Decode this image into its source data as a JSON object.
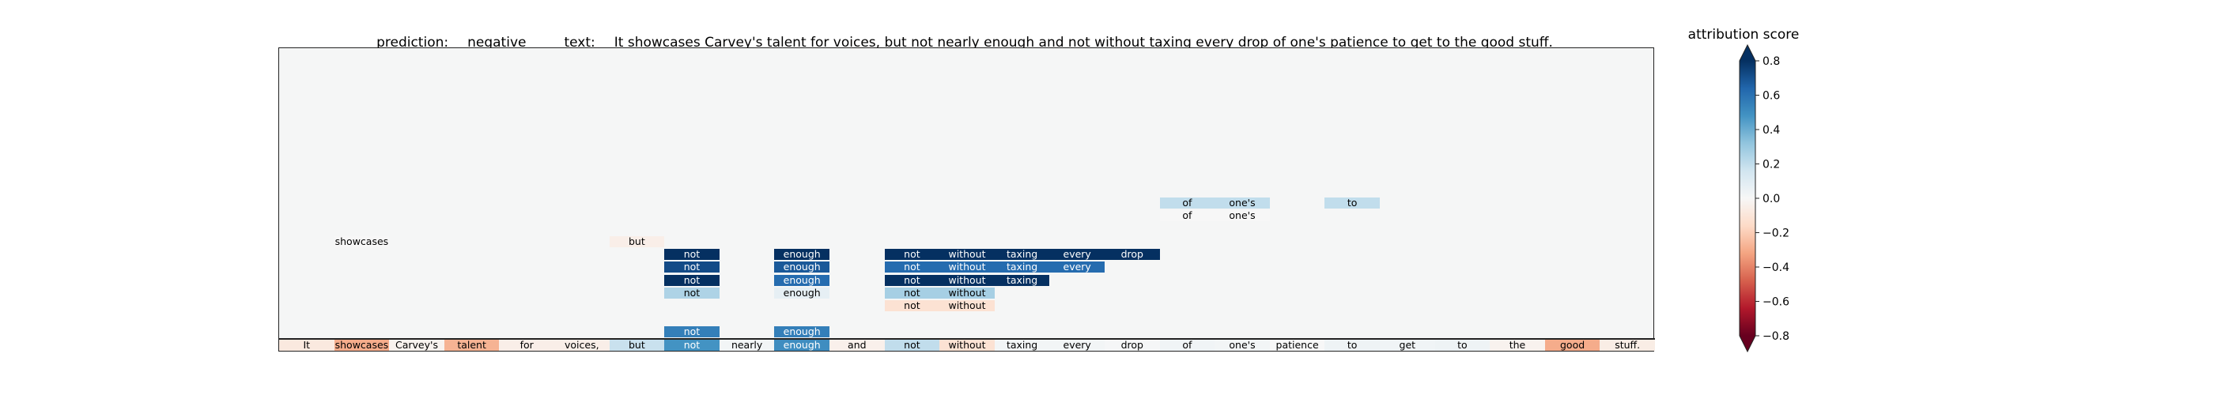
{
  "header": {
    "prediction_label": "prediction:",
    "prediction_value": "negative",
    "text_label": "text:",
    "text_value": "It showcases Carvey's talent for voices, but not nearly enough and not without taxing every drop of one's patience to get to the good stuff."
  },
  "chart_data": {
    "type": "heatmap",
    "colormap": "RdBu",
    "vmin": -0.8,
    "vmax": 0.8,
    "colorbar_label": "attribution score",
    "colorbar_ticks": [
      "0.8",
      "0.6",
      "0.4",
      "0.2",
      "0.0",
      "−0.2",
      "−0.4",
      "−0.6",
      "−0.8"
    ],
    "colorbar_tick_values": [
      0.8,
      0.6,
      0.4,
      0.2,
      0.0,
      -0.2,
      -0.4,
      -0.6,
      -0.8
    ],
    "tokens": [
      {
        "text": "It",
        "score": -0.08
      },
      {
        "text": "showcases",
        "score": -0.3
      },
      {
        "text": "Carvey's",
        "score": -0.03
      },
      {
        "text": "talent",
        "score": -0.28
      },
      {
        "text": "for",
        "score": -0.05
      },
      {
        "text": "voices,",
        "score": -0.05
      },
      {
        "text": "but",
        "score": 0.18
      },
      {
        "text": "not",
        "score": 0.48
      },
      {
        "text": "nearly",
        "score": 0.02
      },
      {
        "text": "enough",
        "score": 0.5
      },
      {
        "text": "and",
        "score": -0.04
      },
      {
        "text": "not",
        "score": 0.2
      },
      {
        "text": "without",
        "score": -0.12
      },
      {
        "text": "taxing",
        "score": 0.02
      },
      {
        "text": "every",
        "score": 0.02
      },
      {
        "text": "drop",
        "score": 0.01
      },
      {
        "text": "of",
        "score": 0.03
      },
      {
        "text": "one's",
        "score": 0.02
      },
      {
        "text": "patience",
        "score": 0.0
      },
      {
        "text": "to",
        "score": 0.04
      },
      {
        "text": "get",
        "score": 0.03
      },
      {
        "text": "to",
        "score": 0.04
      },
      {
        "text": "the",
        "score": -0.03
      },
      {
        "text": "good",
        "score": -0.3
      },
      {
        "text": "stuff.",
        "score": -0.06
      }
    ],
    "levels": [
      {
        "level": 1,
        "cells": [
          {
            "start": 7,
            "end": 8,
            "text": "not",
            "score": 0.55
          },
          {
            "start": 9,
            "end": 10,
            "text": "enough",
            "score": 0.55
          }
        ]
      },
      {
        "level": 3,
        "cells": [
          {
            "start": 11,
            "end": 12,
            "text": "not",
            "score": -0.12
          },
          {
            "start": 12,
            "end": 13,
            "text": "without",
            "score": -0.12
          }
        ]
      },
      {
        "level": 4,
        "cells": [
          {
            "start": 7,
            "end": 8,
            "text": "not",
            "score": 0.25
          },
          {
            "start": 9,
            "end": 10,
            "text": "enough",
            "score": 0.07
          },
          {
            "start": 11,
            "end": 12,
            "text": "not",
            "score": 0.27
          },
          {
            "start": 12,
            "end": 13,
            "text": "without",
            "score": 0.27
          }
        ]
      },
      {
        "level": 5,
        "cells": [
          {
            "start": 7,
            "end": 8,
            "text": "not",
            "score": 0.95
          },
          {
            "start": 9,
            "end": 10,
            "text": "enough",
            "score": 0.62
          },
          {
            "start": 11,
            "end": 12,
            "text": "not",
            "score": 0.85
          },
          {
            "start": 12,
            "end": 13,
            "text": "without",
            "score": 0.85
          },
          {
            "start": 13,
            "end": 14,
            "text": "taxing",
            "score": 0.85
          }
        ]
      },
      {
        "level": 6,
        "cells": [
          {
            "start": 7,
            "end": 8,
            "text": "not",
            "score": 0.72
          },
          {
            "start": 9,
            "end": 10,
            "text": "enough",
            "score": 0.68
          },
          {
            "start": 11,
            "end": 12,
            "text": "not",
            "score": 0.62
          },
          {
            "start": 12,
            "end": 13,
            "text": "without",
            "score": 0.62
          },
          {
            "start": 13,
            "end": 14,
            "text": "taxing",
            "score": 0.62
          },
          {
            "start": 14,
            "end": 15,
            "text": "every",
            "score": 0.62
          }
        ]
      },
      {
        "level": 7,
        "cells": [
          {
            "start": 7,
            "end": 8,
            "text": "not",
            "score": 0.98
          },
          {
            "start": 9,
            "end": 10,
            "text": "enough",
            "score": 0.98
          },
          {
            "start": 11,
            "end": 12,
            "text": "not",
            "score": 0.98
          },
          {
            "start": 12,
            "end": 13,
            "text": "without",
            "score": 0.98
          },
          {
            "start": 13,
            "end": 14,
            "text": "taxing",
            "score": 0.98
          },
          {
            "start": 14,
            "end": 15,
            "text": "every",
            "score": 0.98
          },
          {
            "start": 15,
            "end": 16,
            "text": "drop",
            "score": 0.98
          }
        ]
      },
      {
        "level": 8,
        "cells": [
          {
            "start": 1,
            "end": 2,
            "text": "showcases",
            "score": 0.0
          },
          {
            "start": 6,
            "end": 7,
            "text": "but",
            "score": -0.05
          }
        ]
      },
      {
        "level": 10,
        "cells": [
          {
            "start": 16,
            "end": 17,
            "text": "of",
            "score": 0.0
          },
          {
            "start": 17,
            "end": 18,
            "text": "one's",
            "score": 0.0
          }
        ]
      },
      {
        "level": 11,
        "cells": [
          {
            "start": 16,
            "end": 17,
            "text": "of",
            "score": 0.2
          },
          {
            "start": 17,
            "end": 18,
            "text": "one's",
            "score": 0.2
          },
          {
            "start": 19,
            "end": 20,
            "text": "to",
            "score": 0.2
          }
        ]
      }
    ]
  }
}
